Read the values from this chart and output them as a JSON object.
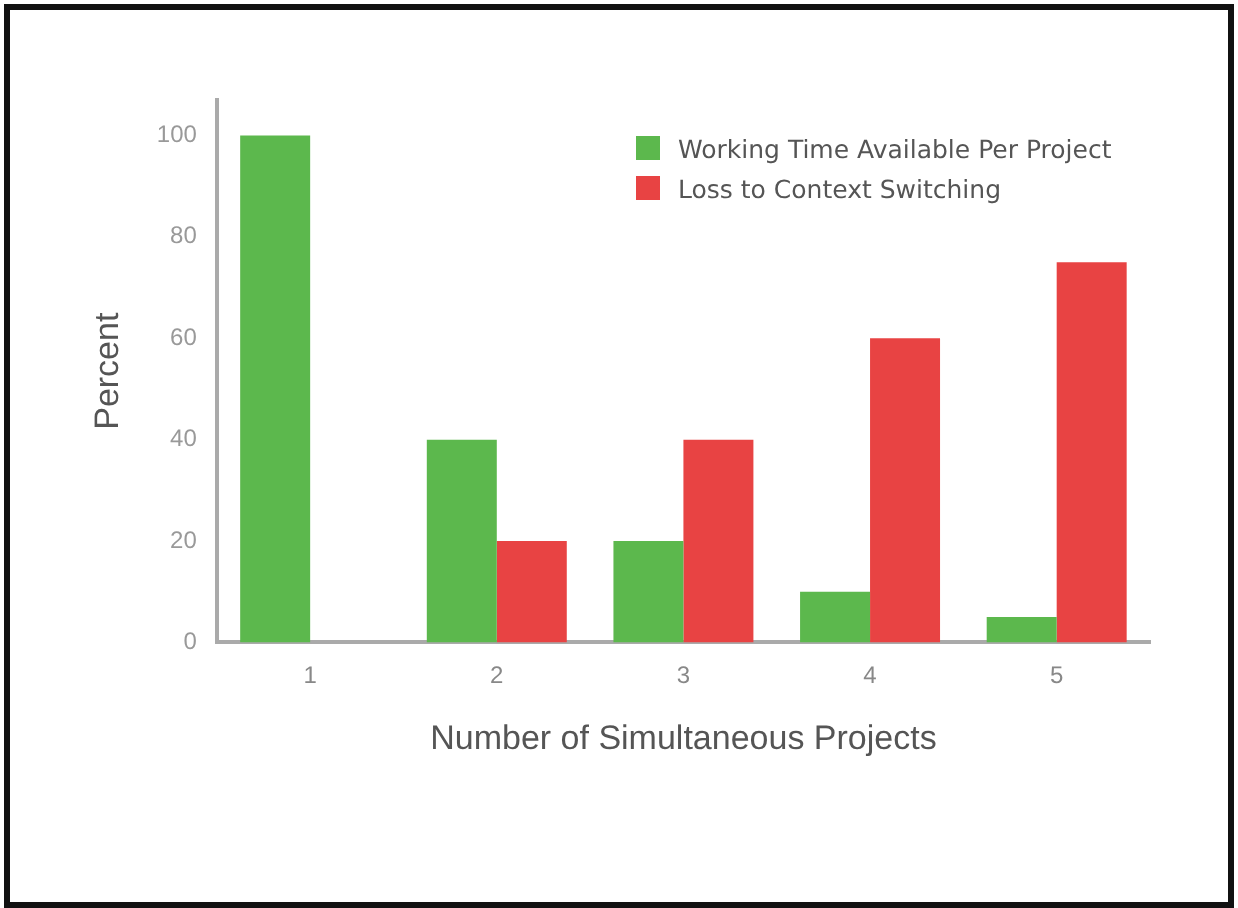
{
  "chart_data": {
    "type": "bar",
    "xlabel": "Number of Simultaneous Projects",
    "ylabel": "Percent",
    "categories": [
      "1",
      "2",
      "3",
      "4",
      "5"
    ],
    "series": [
      {
        "name": "Working Time Available Per Project",
        "color": "#5cb84d",
        "values": [
          100,
          40,
          20,
          10,
          5
        ]
      },
      {
        "name": "Loss to Context Switching",
        "color": "#e84343",
        "values": [
          0,
          20,
          40,
          60,
          75
        ]
      }
    ],
    "ylim": [
      0,
      107
    ],
    "yticks": [
      0,
      20,
      40,
      60,
      80,
      100
    ],
    "grid": false,
    "legend": "top right"
  }
}
